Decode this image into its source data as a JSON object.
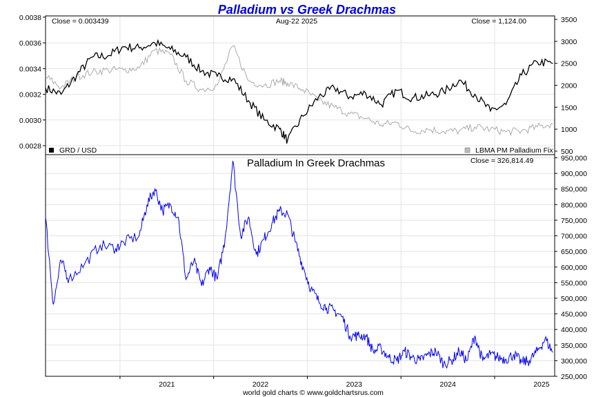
{
  "title": "Palladium vs Greek Drachmas",
  "footer": "world gold charts © www.goldchartsrus.com",
  "colors": {
    "title": "#0000e0",
    "grd": "#000000",
    "palladium": "#aaaaaa",
    "lower": "#0000ee",
    "grid": "#e3e3e3"
  },
  "top_panel": {
    "close_left": "Close = 0.003439",
    "date": "Aug-22  2025",
    "close_right": "Close = 1,124.00",
    "legend_left": "GRD / USD",
    "legend_right": "LBMA PM Palladium Fix"
  },
  "bottom_panel": {
    "title": "Palladium In Greek Drachmas",
    "close": "Close = 326,814.49"
  },
  "chart_data": [
    {
      "type": "line",
      "x_tick_labels": [
        "2021",
        "2022",
        "2023",
        "2024",
        "2025"
      ],
      "x_range": [
        "2020-03",
        "2025-08-22"
      ],
      "y_left_ticks": [
        "0.0028",
        "0.0030",
        "0.0032",
        "0.0034",
        "0.0036",
        "0.0038"
      ],
      "y_left_range": [
        0.00273,
        0.00381
      ],
      "y_right_ticks": [
        "500",
        "1000",
        "1500",
        "2000",
        "2500",
        "3000",
        "3500"
      ],
      "y_right_range": [
        420,
        3580
      ],
      "grid": true,
      "series": [
        {
          "name": "GRD / USD",
          "axis": "left",
          "x": [
            "2020-03",
            "2020-05",
            "2020-07",
            "2020-09",
            "2020-11",
            "2021-01",
            "2021-03",
            "2021-05",
            "2021-07",
            "2021-09",
            "2021-11",
            "2022-01",
            "2022-03",
            "2022-05",
            "2022-07",
            "2022-09",
            "2022-10",
            "2022-12",
            "2023-02",
            "2023-04",
            "2023-06",
            "2023-08",
            "2023-10",
            "2023-12",
            "2024-02",
            "2024-04",
            "2024-06",
            "2024-08",
            "2024-10",
            "2024-12",
            "2025-02",
            "2025-04",
            "2025-06",
            "2025-08"
          ],
          "values": [
            0.00325,
            0.0032,
            0.00335,
            0.00349,
            0.0035,
            0.00357,
            0.00356,
            0.0036,
            0.00355,
            0.00349,
            0.00338,
            0.00334,
            0.00332,
            0.00315,
            0.003,
            0.00293,
            0.00284,
            0.00303,
            0.00318,
            0.00325,
            0.00318,
            0.00321,
            0.00312,
            0.00323,
            0.00317,
            0.00319,
            0.00322,
            0.00331,
            0.0032,
            0.00307,
            0.00312,
            0.00335,
            0.00345,
            0.00344
          ]
        },
        {
          "name": "LBMA PM Palladium Fix",
          "axis": "right",
          "x": [
            "2020-03",
            "2020-05",
            "2020-07",
            "2020-09",
            "2020-11",
            "2021-01",
            "2021-03",
            "2021-05",
            "2021-07",
            "2021-09",
            "2021-11",
            "2022-01",
            "2022-03",
            "2022-05",
            "2022-07",
            "2022-09",
            "2022-10",
            "2022-12",
            "2023-02",
            "2023-04",
            "2023-06",
            "2023-08",
            "2023-10",
            "2023-12",
            "2024-02",
            "2024-04",
            "2024-06",
            "2024-08",
            "2024-10",
            "2024-12",
            "2025-02",
            "2025-04",
            "2025-06",
            "2025-08"
          ],
          "values": [
            2200,
            1950,
            2200,
            2300,
            2350,
            2350,
            2400,
            2800,
            2700,
            2100,
            1900,
            2000,
            2900,
            2100,
            2000,
            2100,
            2050,
            1900,
            1650,
            1500,
            1350,
            1250,
            1100,
            1150,
            950,
            1000,
            950,
            960,
            1050,
            1000,
            940,
            960,
            1050,
            1124
          ]
        }
      ]
    },
    {
      "type": "line",
      "title": "Palladium In Greek Drachmas",
      "x_tick_labels": [
        "2021",
        "2022",
        "2023",
        "2024",
        "2025"
      ],
      "x_range": [
        "2020-03",
        "2025-08-22"
      ],
      "y_right_ticks": [
        "250,000",
        "300,000",
        "350,000",
        "400,000",
        "450,000",
        "500,000",
        "550,000",
        "600,000",
        "650,000",
        "700,000",
        "750,000",
        "800,000",
        "850,000",
        "900,000",
        "950,000"
      ],
      "y_range": [
        250000,
        960000
      ],
      "grid": true,
      "series": [
        {
          "name": "Palladium In Greek Drachmas",
          "x": [
            "2020-03",
            "2020-04",
            "2020-05",
            "2020-06",
            "2020-08",
            "2020-10",
            "2020-12",
            "2021-01",
            "2021-03",
            "2021-04",
            "2021-05",
            "2021-06",
            "2021-07",
            "2021-08",
            "2021-09",
            "2021-10",
            "2021-11",
            "2021-12",
            "2022-01",
            "2022-02",
            "2022-03",
            "2022-04",
            "2022-05",
            "2022-06",
            "2022-07",
            "2022-08",
            "2022-09",
            "2022-10",
            "2022-11",
            "2022-12",
            "2023-01",
            "2023-02",
            "2023-03",
            "2023-04",
            "2023-05",
            "2023-06",
            "2023-07",
            "2023-08",
            "2023-09",
            "2023-10",
            "2023-11",
            "2023-12",
            "2024-01",
            "2024-02",
            "2024-03",
            "2024-04",
            "2024-05",
            "2024-06",
            "2024-07",
            "2024-08",
            "2024-09",
            "2024-10",
            "2024-11",
            "2024-12",
            "2025-01",
            "2025-02",
            "2025-03",
            "2025-04",
            "2025-05",
            "2025-06",
            "2025-07",
            "2025-08"
          ],
          "values": [
            760000,
            480000,
            620000,
            560000,
            610000,
            670000,
            660000,
            680000,
            700000,
            800000,
            850000,
            780000,
            800000,
            760000,
            560000,
            620000,
            540000,
            600000,
            560000,
            690000,
            940000,
            700000,
            760000,
            640000,
            690000,
            740000,
            780000,
            770000,
            680000,
            600000,
            530000,
            490000,
            470000,
            460000,
            440000,
            380000,
            380000,
            380000,
            330000,
            340000,
            310000,
            300000,
            330000,
            310000,
            300000,
            320000,
            330000,
            290000,
            300000,
            330000,
            300000,
            380000,
            300000,
            320000,
            310000,
            305000,
            320000,
            295000,
            300000,
            330000,
            370000,
            327000
          ]
        }
      ]
    }
  ]
}
